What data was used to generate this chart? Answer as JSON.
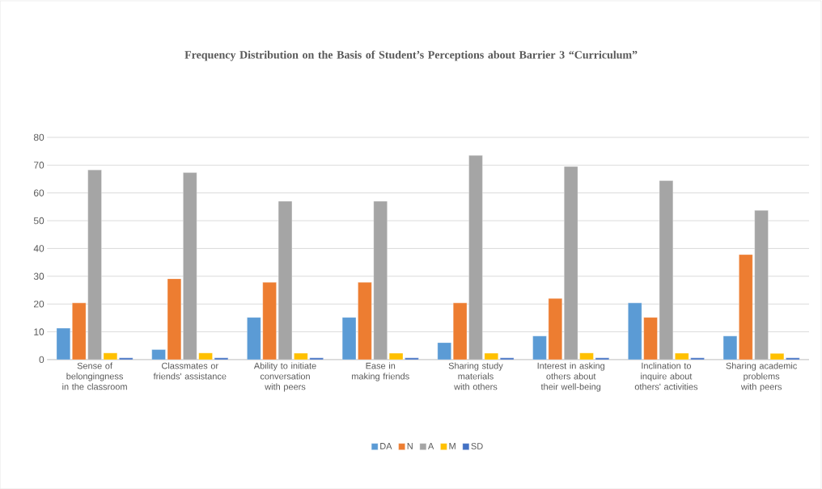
{
  "chart_data": {
    "type": "bar",
    "title": "Frequency Distribution on the Basis of Student’s Perceptions about Barrier 3 “Curriculum”",
    "categories": [
      "Sense of belongingness in the classroom",
      "Classmates or friends' assistance",
      "Ability to initiate conversation with peers",
      "Ease in making friends",
      "Sharing study materials with others",
      "Interest in asking others about their well-being",
      "Inclination to inquire about others' activities",
      "Sharing academic problems with peers"
    ],
    "series": [
      {
        "name": "DA",
        "color": "#5b9bd5",
        "values": [
          11.3,
          3.6,
          15.2,
          15.2,
          6.1,
          8.5,
          20.4,
          8.5
        ]
      },
      {
        "name": "N",
        "color": "#ed7d31",
        "values": [
          20.4,
          29.1,
          27.8,
          27.8,
          20.4,
          22.0,
          15.2,
          37.8
        ]
      },
      {
        "name": "A",
        "color": "#a5a5a5",
        "values": [
          68.3,
          67.3,
          57.0,
          57.0,
          73.5,
          69.5,
          64.4,
          53.7
        ]
      },
      {
        "name": "M",
        "color": "#ffc000",
        "values": [
          2.4,
          2.4,
          2.3,
          2.3,
          2.3,
          2.4,
          2.3,
          2.2
        ]
      },
      {
        "name": "SD",
        "color": "#4472c4",
        "values": [
          0.6,
          0.6,
          0.6,
          0.6,
          0.6,
          0.6,
          0.6,
          0.6
        ]
      }
    ],
    "ylim": [
      0,
      80
    ],
    "yticks": [
      0,
      10,
      20,
      30,
      40,
      50,
      60,
      70,
      80
    ],
    "grid": "y",
    "legend": "bottom"
  }
}
